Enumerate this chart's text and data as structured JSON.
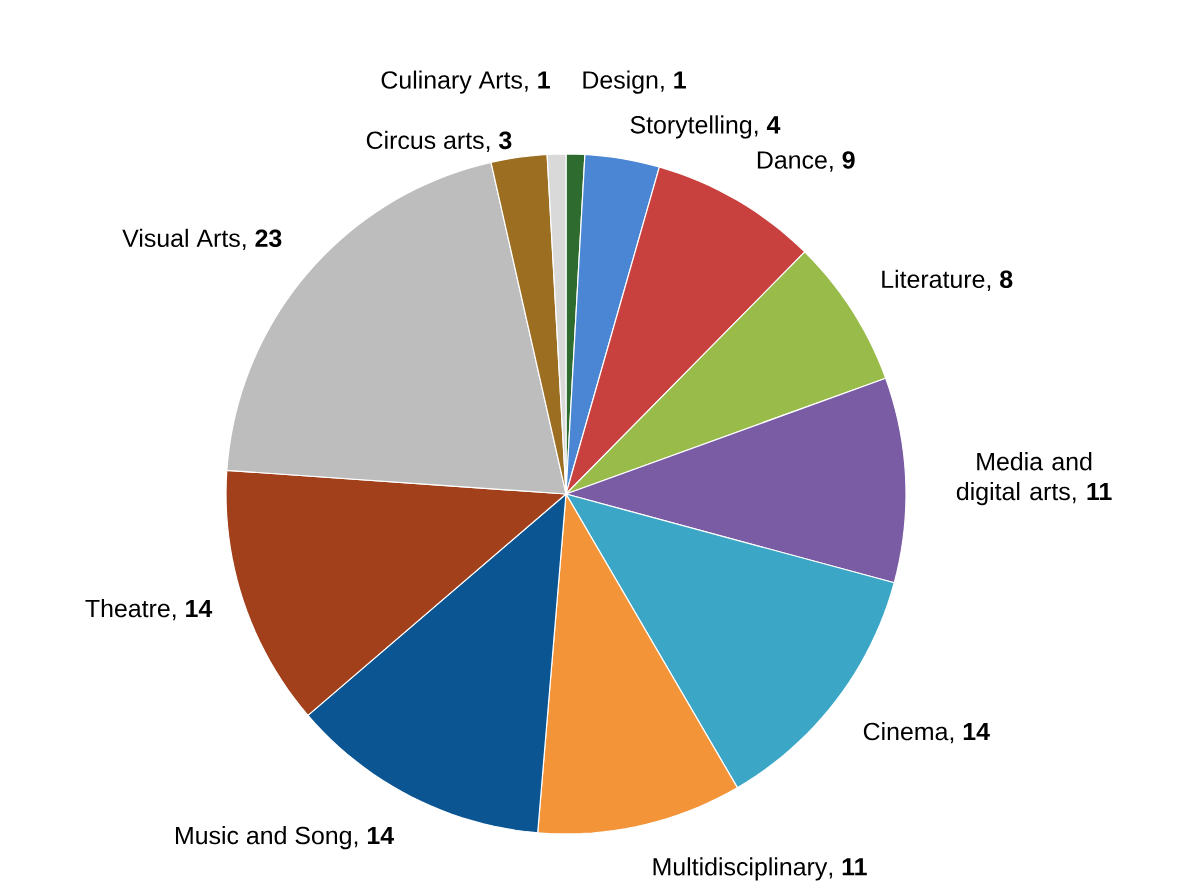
{
  "chart_data": {
    "type": "pie",
    "categories": [
      "Design",
      "Storytelling",
      "Dance",
      "Literature",
      "Media and digital arts",
      "Cinema",
      "Multidisciplinary",
      "Music and Song",
      "Theatre",
      "Visual Arts",
      "Circus arts",
      "Culinary Arts"
    ],
    "values": [
      1,
      4,
      9,
      8,
      11,
      14,
      11,
      14,
      14,
      23,
      3,
      1
    ],
    "colors": [
      "#2e6b2e",
      "#4a86d4",
      "#c9413f",
      "#98bb4a",
      "#7a5ca5",
      "#3ca6c6",
      "#f29437",
      "#0a5592",
      "#a2401c",
      "#bdbdbd",
      "#9c6e22",
      "#d9d9d9"
    ],
    "value_labels": [
      ", **1**",
      ", **4**",
      ", **9**",
      ", **8**",
      ", **11**",
      ", **14**",
      ", **11**",
      ", **14**",
      ", **14**",
      ", **23**",
      ", **3**",
      ", **1**"
    ]
  }
}
